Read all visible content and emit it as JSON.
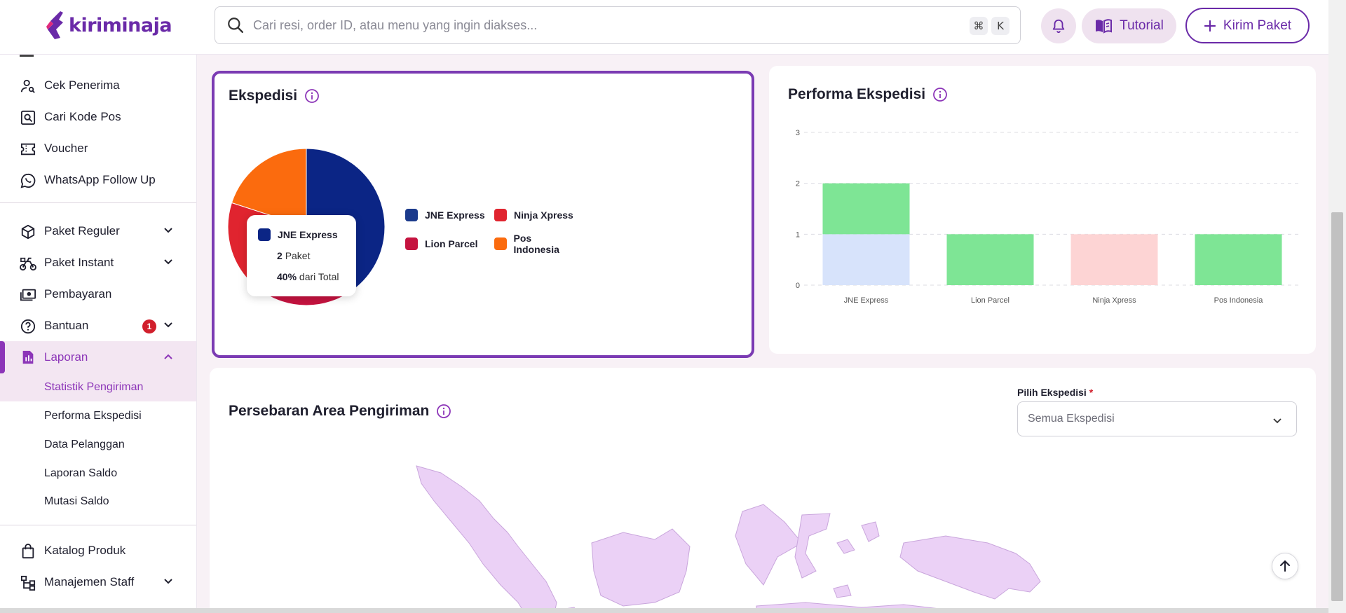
{
  "app": {
    "logo_text": "kiriminaja",
    "brand_color": "#6a2aa8",
    "accent_color": "#8c35b8"
  },
  "header": {
    "search_placeholder": "Cari resi, order ID, atau menu yang ingin diakses...",
    "shortcut_keys": [
      "⌘",
      "K"
    ],
    "tutorial_label": "Tutorial",
    "kirim_label": "Kirim Paket"
  },
  "sidebar": {
    "items": [
      {
        "label": "Cek Penerima",
        "icon": "user-search-icon"
      },
      {
        "label": "Cari Kode Pos",
        "icon": "search-box-icon"
      },
      {
        "label": "Voucher",
        "icon": "ticket-icon"
      },
      {
        "label": "WhatsApp Follow Up",
        "icon": "whatsapp-icon"
      },
      {
        "label": "Paket Reguler",
        "icon": "box-icon"
      },
      {
        "label": "Paket Instant",
        "icon": "bike-icon"
      },
      {
        "label": "Pembayaran",
        "icon": "cash-icon"
      },
      {
        "label": "Bantuan",
        "icon": "help-icon",
        "badge": "1"
      },
      {
        "label": "Laporan",
        "icon": "report-icon"
      }
    ],
    "sub_items": [
      "Statistik Pengiriman",
      "Performa Ekspedisi",
      "Data Pelanggan",
      "Laporan Saldo",
      "Mutasi Saldo"
    ],
    "bottom_items": [
      {
        "label": "Katalog Produk",
        "icon": "shopping-bag-icon"
      },
      {
        "label": "Manajemen Staff",
        "icon": "org-chart-icon"
      }
    ]
  },
  "ekspedisi_card": {
    "title": "Ekspedisi",
    "legend": [
      {
        "label": "JNE Express",
        "color": "#1b3a8c"
      },
      {
        "label": "Ninja Xpress",
        "color": "#e0242f"
      },
      {
        "label": "Lion Parcel",
        "color": "#c5133f"
      },
      {
        "label": "Pos Indonesia",
        "color": "#fb6b0e"
      }
    ],
    "tooltip": {
      "name": "JNE Express",
      "count": "2",
      "count_unit": "Paket",
      "percent": "40%",
      "percent_suffix": "dari Total"
    }
  },
  "performa_card": {
    "title": "Performa Ekspedisi"
  },
  "persebaran_card": {
    "title": "Persebaran Area Pengiriman",
    "select_label": "Pilih Ekspedisi",
    "select_required": "*",
    "select_value": "Semua Ekspedisi"
  },
  "chart_data": [
    {
      "type": "pie",
      "title": "Ekspedisi",
      "categories": [
        "JNE Express",
        "Lion Parcel",
        "Ninja Xpress",
        "Pos Indonesia"
      ],
      "values": [
        2,
        1,
        1,
        1
      ],
      "colors": [
        "#0b2585",
        "#c5133f",
        "#e0242f",
        "#fb6b0e"
      ]
    },
    {
      "type": "bar",
      "title": "Performa Ekspedisi",
      "categories": [
        "JNE Express",
        "Lion Parcel",
        "Ninja Xpress",
        "Pos Indonesia"
      ],
      "stacked": true,
      "series": [
        {
          "values": [
            1,
            0,
            1,
            0
          ],
          "colors": [
            "#d7e3fb",
            "#d7e3fb",
            "#fdd4d4",
            "#d7e3fb"
          ]
        },
        {
          "values": [
            1,
            1,
            0,
            1
          ],
          "colors": [
            "#7ee595",
            "#7ee595",
            "#7ee595",
            "#7ee595"
          ]
        }
      ],
      "yticks": [
        "0",
        "1",
        "2",
        "3"
      ],
      "ylim": [
        0,
        3
      ],
      "grid": true
    }
  ]
}
